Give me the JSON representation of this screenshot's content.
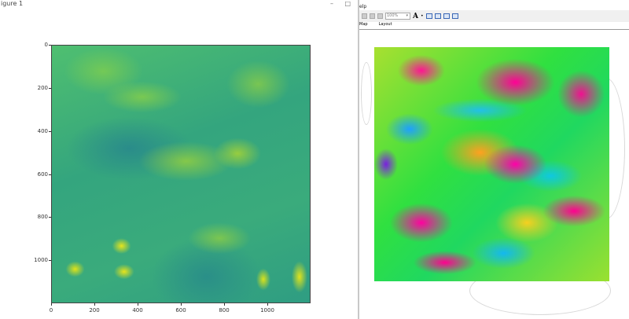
{
  "left_window": {
    "title": "igure 1",
    "window_controls": "– □",
    "plot": {
      "type": "image",
      "colormap": "viridis",
      "x_ticks": [
        "0",
        "200",
        "400",
        "600",
        "800",
        "1000"
      ],
      "y_ticks": [
        "0",
        "200",
        "400",
        "600",
        "800",
        "1000"
      ],
      "xlim": [
        0,
        1200
      ],
      "ylim": [
        1200,
        0
      ]
    }
  },
  "right_window": {
    "menu": "elp",
    "zoom_value": "100%",
    "text_tool": "A",
    "tabs": [
      {
        "label": "Map"
      },
      {
        "label": "Layout"
      }
    ],
    "raster_colormap": "rainbow"
  }
}
